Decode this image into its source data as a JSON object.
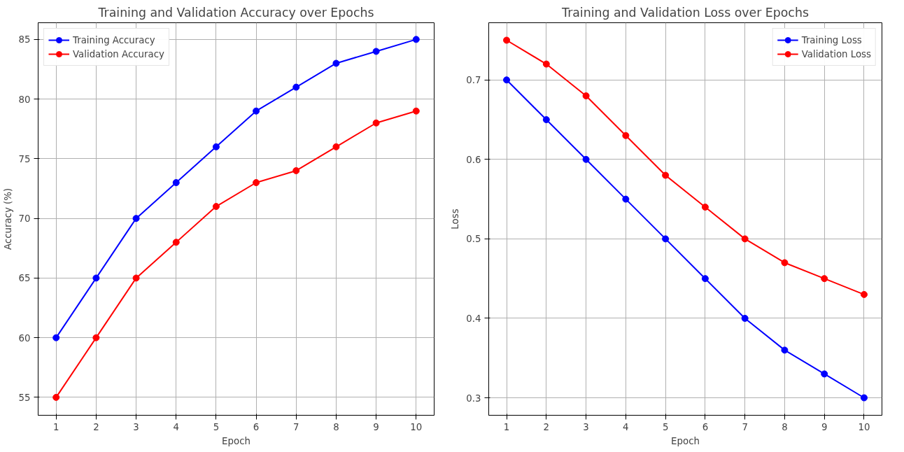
{
  "chart_data": [
    {
      "type": "line",
      "title": "Training and Validation Accuracy over Epochs",
      "xlabel": "Epoch",
      "ylabel": "Accuracy (%)",
      "x": [
        1,
        2,
        3,
        4,
        5,
        6,
        7,
        8,
        9,
        10
      ],
      "xlim": [
        0.55,
        10.45
      ],
      "xticks": [
        1,
        2,
        3,
        4,
        5,
        6,
        7,
        8,
        9,
        10
      ],
      "ylim": [
        53.5,
        86.4
      ],
      "yticks": [
        55,
        60,
        65,
        70,
        75,
        80,
        85
      ],
      "grid": true,
      "legend": "top left",
      "marker": "circle",
      "line_style": "solid",
      "series": [
        {
          "name": "Training Accuracy",
          "color": "#0000ff",
          "values": [
            60,
            65,
            70,
            73,
            76,
            79,
            81,
            83,
            84,
            85
          ]
        },
        {
          "name": "Validation Accuracy",
          "color": "#ff0000",
          "values": [
            55,
            60,
            65,
            68,
            71,
            73,
            74,
            76,
            78,
            79
          ]
        }
      ]
    },
    {
      "type": "line",
      "title": "Training and Validation Loss over Epochs",
      "xlabel": "Epoch",
      "ylabel": "Loss",
      "x": [
        1,
        2,
        3,
        4,
        5,
        6,
        7,
        8,
        9,
        10
      ],
      "xlim": [
        0.55,
        10.45
      ],
      "xticks": [
        1,
        2,
        3,
        4,
        5,
        6,
        7,
        8,
        9,
        10
      ],
      "ylim": [
        0.278,
        0.772
      ],
      "yticks": [
        0.3,
        0.4,
        0.5,
        0.6,
        0.7
      ],
      "grid": true,
      "legend": "top right",
      "marker": "circle",
      "line_style": "solid",
      "series": [
        {
          "name": "Training Loss",
          "color": "#0000ff",
          "values": [
            0.7,
            0.65,
            0.6,
            0.55,
            0.5,
            0.45,
            0.4,
            0.36,
            0.33,
            0.3
          ]
        },
        {
          "name": "Validation Loss",
          "color": "#ff0000",
          "values": [
            0.75,
            0.72,
            0.68,
            0.63,
            0.58,
            0.54,
            0.5,
            0.47,
            0.45,
            0.43
          ]
        }
      ]
    }
  ]
}
